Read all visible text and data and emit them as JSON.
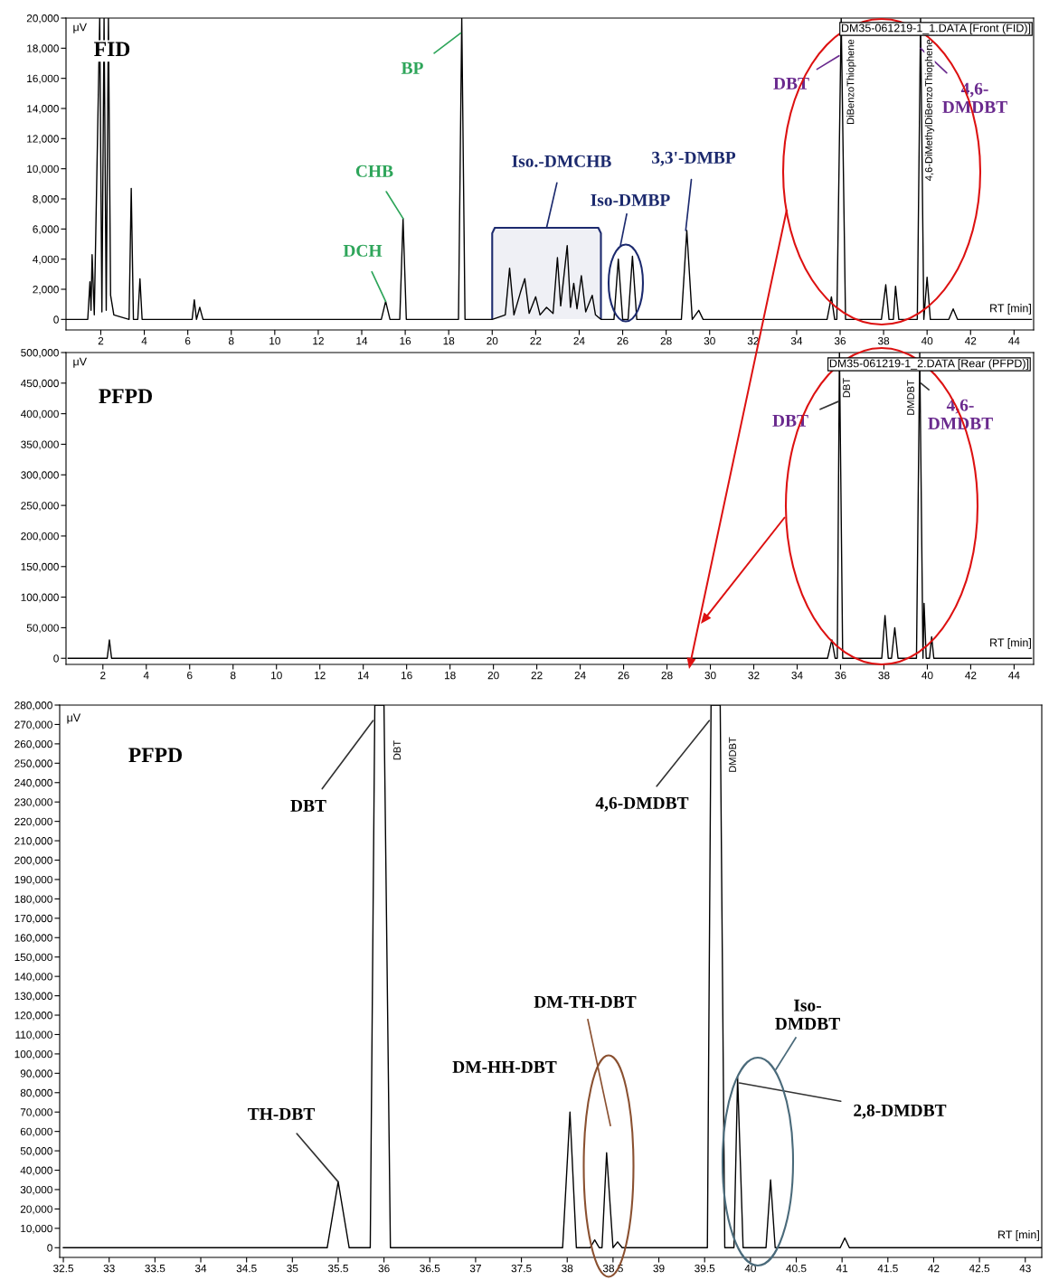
{
  "chart_data": [
    {
      "type": "line",
      "title": "FID",
      "ylabel": "μV",
      "xlabel": "RT [min]",
      "grid": false,
      "xlim": [
        0.4,
        44.9
      ],
      "ylim": [
        -700,
        20000
      ],
      "xticks": [
        2,
        4,
        6,
        8,
        10,
        12,
        14,
        16,
        18,
        20,
        22,
        24,
        26,
        28,
        30,
        32,
        34,
        36,
        38,
        40,
        42,
        44
      ],
      "yticks": [
        0,
        {
          "value": 2000,
          "label": "2,000"
        },
        {
          "value": 4000,
          "label": "4,000"
        },
        {
          "value": 6000,
          "label": "6,000"
        },
        {
          "value": 8000,
          "label": "8,000"
        },
        {
          "value": 10000,
          "label": "10,000"
        },
        {
          "value": 12000,
          "label": "12,000"
        },
        {
          "value": 14000,
          "label": "14,000"
        },
        {
          "value": 16000,
          "label": "16,000"
        },
        {
          "value": 18000,
          "label": "18,000"
        },
        {
          "value": 20000,
          "label": "20,000"
        }
      ],
      "series": [
        {
          "color": "#000000",
          "x": [
            0.4,
            1.4,
            1.5,
            1.55,
            1.6,
            1.7,
            1.95,
            2.05,
            2.15,
            2.25,
            2.35,
            2.45,
            2.6,
            3.3,
            3.4,
            3.5,
            3.7,
            3.8,
            3.9,
            6.2,
            6.3,
            6.4,
            6.55,
            6.7,
            14.9,
            15.1,
            15.3,
            15.75,
            15.9,
            16.05,
            18.45,
            18.6,
            18.75,
            20.0,
            20.6,
            20.8,
            21.0,
            21.3,
            21.5,
            21.7,
            22.0,
            22.2,
            22.5,
            22.8,
            23.0,
            23.15,
            23.45,
            23.6,
            23.75,
            23.9,
            24.1,
            24.3,
            24.6,
            24.75,
            25.0,
            25.6,
            25.8,
            26.0,
            26.25,
            26.45,
            26.65,
            28.7,
            28.95,
            29.2,
            29.5,
            29.7,
            35.4,
            35.6,
            35.75,
            35.85,
            36.05,
            36.25,
            37.9,
            38.1,
            38.25,
            38.45,
            38.55,
            38.7,
            39.55,
            39.7,
            39.85,
            40.0,
            40.15,
            41.0,
            41.2,
            41.4,
            44.8
          ],
          "values": [
            0,
            0,
            2500,
            600,
            4300,
            300,
            20000,
            500,
            20000,
            600,
            20000,
            1600,
            300,
            0,
            8700,
            0,
            0,
            2700,
            0,
            0,
            1300,
            0,
            800,
            0,
            0,
            1200,
            0,
            0,
            6700,
            0,
            0,
            20000,
            0,
            0,
            300,
            3400,
            300,
            1800,
            2700,
            400,
            1500,
            300,
            800,
            400,
            4100,
            900,
            4900,
            800,
            2400,
            700,
            2900,
            500,
            1600,
            300,
            0,
            0,
            4000,
            0,
            0,
            4200,
            0,
            0,
            5900,
            0,
            600,
            0,
            0,
            1500,
            0,
            0,
            20000,
            0,
            0,
            2300,
            0,
            0,
            2200,
            0,
            0,
            20000,
            0,
            2800,
            0,
            0,
            700,
            0,
            0
          ]
        }
      ],
      "bands": [
        {
          "axis": "x",
          "from": 20,
          "to": 25,
          "label": "Iso.-DMCHB",
          "color": "#1c2a6e"
        }
      ],
      "annotations": [
        "DM35-061219-1_1.DATA [Front (FID)]",
        {
          "text": "BP",
          "x": 18.55,
          "y": 19000
        },
        {
          "text": "CHB",
          "x": 15.9,
          "y": 6700
        },
        {
          "text": "DCH",
          "x": 15.1,
          "y": 1200
        },
        "Iso-DMBP",
        {
          "text": "3,3'-DMBP",
          "x": 28.9,
          "y": 5900
        },
        {
          "text": "DBT",
          "x": 35.95,
          "y": 17500
        },
        {
          "text": "4,6-\nDMDBT",
          "x": 39.7,
          "y": 18000
        },
        {
          "text": "DiBenzoThiophene",
          "x": 36.3,
          "y": 18600
        },
        {
          "text": "4,6-DiMethylDiBenzoThiophene",
          "x": 39.9,
          "y": 18600
        }
      ]
    },
    {
      "type": "line",
      "title": "PFPD",
      "ylabel": "μV",
      "xlabel": "RT [min]",
      "grid": false,
      "xlim": [
        0.3,
        44.9
      ],
      "ylim": [
        -10000,
        500000
      ],
      "xticks": [
        2,
        4,
        6,
        8,
        10,
        12,
        14,
        16,
        18,
        20,
        22,
        24,
        26,
        28,
        30,
        32,
        34,
        36,
        38,
        40,
        42,
        44
      ],
      "yticks": [
        0,
        {
          "value": 50000,
          "label": "50,000"
        },
        {
          "value": 100000,
          "label": "100,000"
        },
        {
          "value": 150000,
          "label": "150,000"
        },
        {
          "value": 200000,
          "label": "200,000"
        },
        {
          "value": 250000,
          "label": "250,000"
        },
        {
          "value": 300000,
          "label": "300,000"
        },
        {
          "value": 350000,
          "label": "350,000"
        },
        {
          "value": 400000,
          "label": "400,000"
        },
        {
          "value": 450000,
          "label": "450,000"
        },
        {
          "value": 500000,
          "label": "500,000"
        }
      ],
      "series": [
        {
          "color": "#000000",
          "x": [
            0.4,
            2.2,
            2.3,
            2.4,
            35.4,
            35.6,
            35.75,
            35.85,
            35.95,
            36.1,
            37.9,
            38.05,
            38.2,
            38.35,
            38.5,
            38.65,
            39.5,
            39.65,
            39.8,
            39.85,
            39.95,
            40.1,
            40.2,
            40.3,
            44.8
          ],
          "values": [
            0,
            0,
            30000,
            0,
            0,
            30000,
            0,
            0,
            500000,
            0,
            0,
            70000,
            0,
            0,
            50000,
            0,
            0,
            500000,
            0,
            90000,
            0,
            0,
            35000,
            0,
            0
          ]
        }
      ],
      "annotations": [
        "DM35-061219-1_2.DATA [Rear (PFPD)]",
        {
          "text": "DBT",
          "x": 35.9,
          "y": 420000
        },
        {
          "text": "4,6-\nDMDBT",
          "x": 39.7,
          "y": 450000
        },
        "DBT",
        "DMDBT"
      ]
    },
    {
      "type": "line",
      "title": "PFPD",
      "ylabel": "μV",
      "xlabel": "RT [min]",
      "grid": false,
      "xlim": [
        32.46,
        43.18
      ],
      "ylim": [
        -5000,
        280000
      ],
      "xticks": [
        32.5,
        33,
        33.5,
        34,
        34.5,
        35,
        35.5,
        36,
        36.5,
        37,
        37.5,
        38,
        38.5,
        39,
        39.5,
        40,
        40.5,
        41,
        41.5,
        42,
        42.5,
        43
      ],
      "yticks": [
        0,
        {
          "value": 10000,
          "label": "10,000"
        },
        {
          "value": 20000,
          "label": "20,000"
        },
        {
          "value": 30000,
          "label": "30,000"
        },
        {
          "value": 40000,
          "label": "40,000"
        },
        {
          "value": 50000,
          "label": "50,000"
        },
        {
          "value": 60000,
          "label": "60,000"
        },
        {
          "value": 70000,
          "label": "70,000"
        },
        {
          "value": 80000,
          "label": "80,000"
        },
        {
          "value": 90000,
          "label": "90,000"
        },
        {
          "value": 100000,
          "label": "100,000"
        },
        {
          "value": 110000,
          "label": "110,000"
        },
        {
          "value": 120000,
          "label": "120,000"
        },
        {
          "value": 130000,
          "label": "130,000"
        },
        {
          "value": 140000,
          "label": "140,000"
        },
        {
          "value": 150000,
          "label": "150,000"
        },
        {
          "value": 160000,
          "label": "160,000"
        },
        {
          "value": 170000,
          "label": "170,000"
        },
        {
          "value": 180000,
          "label": "180,000"
        },
        {
          "value": 190000,
          "label": "190,000"
        },
        {
          "value": 200000,
          "label": "200,000"
        },
        {
          "value": 210000,
          "label": "210,000"
        },
        {
          "value": 220000,
          "label": "220,000"
        },
        {
          "value": 230000,
          "label": "230,000"
        },
        {
          "value": 240000,
          "label": "240,000"
        },
        {
          "value": 250000,
          "label": "250,000"
        },
        {
          "value": 260000,
          "label": "260,000"
        },
        {
          "value": 270000,
          "label": "270,000"
        },
        {
          "value": 280000,
          "label": "280,000"
        }
      ],
      "series": [
        {
          "color": "#000000",
          "x": [
            32.5,
            35.38,
            35.5,
            35.62,
            35.85,
            35.9,
            36.0,
            36.07,
            37.95,
            38.03,
            38.1,
            38.25,
            38.3,
            38.35,
            38.38,
            38.43,
            38.5,
            38.55,
            38.6,
            39.53,
            39.57,
            39.67,
            39.72,
            39.82,
            39.86,
            39.92,
            40.17,
            40.22,
            40.27,
            40.98,
            41.03,
            41.08,
            43.18
          ],
          "values": [
            0,
            0,
            34000,
            0,
            0,
            280000,
            280000,
            0,
            0,
            70000,
            0,
            0,
            4000,
            0,
            0,
            49000,
            0,
            3000,
            0,
            0,
            280000,
            280000,
            0,
            0,
            88000,
            0,
            0,
            35000,
            0,
            0,
            5000,
            0,
            0
          ]
        }
      ],
      "annotations": [
        {
          "text": "DBT",
          "x": 35.88,
          "y": 272000
        },
        "DBT",
        {
          "text": "TH-DBT",
          "x": 35.5,
          "y": 34000
        },
        "DM-HH-DBT",
        "DM-TH-DBT",
        {
          "text": "4,6-DMDBT",
          "x": 39.55,
          "y": 272000
        },
        "DMDBT",
        "Iso-\nDMDBT",
        {
          "text": "2,8-DMDBT",
          "x": 39.88,
          "y": 85000
        }
      ]
    }
  ]
}
